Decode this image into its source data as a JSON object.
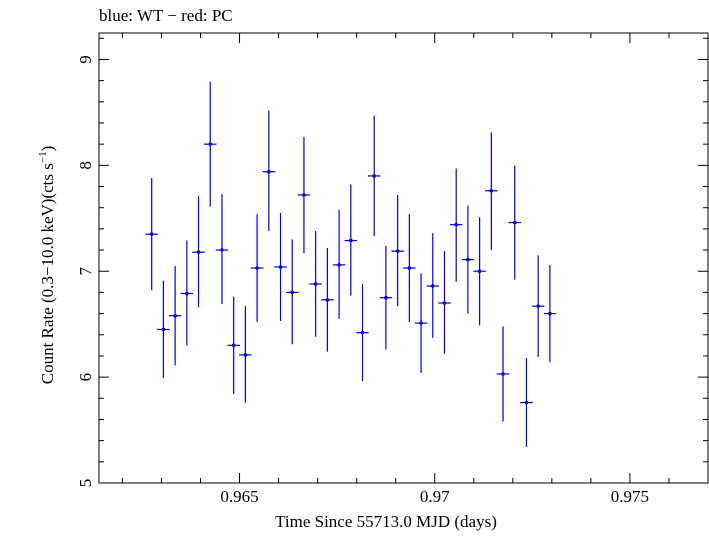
{
  "chart_data": {
    "type": "scatter",
    "title": "blue: WT − red: PC",
    "xlabel": "Time Since 55713.0 MJD (days)",
    "ylabel_main": "Count Rate (0.3−10.0 keV)(cts s",
    "ylabel_sup": "−1",
    "ylabel_close": ")",
    "xlim": [
      0.9614,
      0.977
    ],
    "ylim": [
      5,
      9.25
    ],
    "xticks": [
      {
        "value": 0.965,
        "label": "0.965"
      },
      {
        "value": 0.97,
        "label": "0.97"
      },
      {
        "value": 0.975,
        "label": "0.975"
      }
    ],
    "yticks": [
      {
        "value": 5,
        "label": "5"
      },
      {
        "value": 6,
        "label": "6"
      },
      {
        "value": 7,
        "label": "7"
      },
      {
        "value": 8,
        "label": "8"
      },
      {
        "value": 9,
        "label": "9"
      }
    ],
    "grid": false,
    "colors": {
      "wt": "#0000dd",
      "axis": "#000000"
    },
    "series": [
      {
        "name": "WT",
        "color": "#0000dd",
        "points": [
          {
            "x": 0.96275,
            "xerr": 0.00016,
            "y": 7.35,
            "ylo": 6.82,
            "yhi": 7.88
          },
          {
            "x": 0.96305,
            "xerr": 0.00016,
            "y": 6.45,
            "ylo": 5.99,
            "yhi": 6.91
          },
          {
            "x": 0.96335,
            "xerr": 0.00016,
            "y": 6.58,
            "ylo": 6.11,
            "yhi": 7.05
          },
          {
            "x": 0.96365,
            "xerr": 0.00016,
            "y": 6.79,
            "ylo": 6.3,
            "yhi": 7.29
          },
          {
            "x": 0.96395,
            "xerr": 0.00016,
            "y": 7.18,
            "ylo": 6.66,
            "yhi": 7.71
          },
          {
            "x": 0.96425,
            "xerr": 0.00016,
            "y": 8.2,
            "ylo": 7.61,
            "yhi": 8.79
          },
          {
            "x": 0.96455,
            "xerr": 0.00016,
            "y": 7.2,
            "ylo": 6.69,
            "yhi": 7.73
          },
          {
            "x": 0.96485,
            "xerr": 0.00016,
            "y": 6.3,
            "ylo": 5.84,
            "yhi": 6.76
          },
          {
            "x": 0.96515,
            "xerr": 0.00016,
            "y": 6.21,
            "ylo": 5.76,
            "yhi": 6.67
          },
          {
            "x": 0.96545,
            "xerr": 0.00016,
            "y": 7.03,
            "ylo": 6.52,
            "yhi": 7.54
          },
          {
            "x": 0.96575,
            "xerr": 0.00016,
            "y": 7.94,
            "ylo": 7.38,
            "yhi": 8.52
          },
          {
            "x": 0.96605,
            "xerr": 0.00016,
            "y": 7.04,
            "ylo": 6.53,
            "yhi": 7.55
          },
          {
            "x": 0.96635,
            "xerr": 0.00016,
            "y": 6.8,
            "ylo": 6.31,
            "yhi": 7.3
          },
          {
            "x": 0.96665,
            "xerr": 0.00016,
            "y": 7.72,
            "ylo": 7.17,
            "yhi": 8.27
          },
          {
            "x": 0.96695,
            "xerr": 0.00016,
            "y": 6.88,
            "ylo": 6.38,
            "yhi": 7.38
          },
          {
            "x": 0.96725,
            "xerr": 0.00016,
            "y": 6.73,
            "ylo": 6.24,
            "yhi": 7.22
          },
          {
            "x": 0.96755,
            "xerr": 0.00016,
            "y": 7.06,
            "ylo": 6.55,
            "yhi": 7.58
          },
          {
            "x": 0.96785,
            "xerr": 0.00016,
            "y": 7.29,
            "ylo": 6.77,
            "yhi": 7.82
          },
          {
            "x": 0.96815,
            "xerr": 0.00016,
            "y": 6.42,
            "ylo": 5.96,
            "yhi": 6.88
          },
          {
            "x": 0.96845,
            "xerr": 0.00016,
            "y": 7.9,
            "ylo": 7.33,
            "yhi": 8.47
          },
          {
            "x": 0.96875,
            "xerr": 0.00016,
            "y": 6.75,
            "ylo": 6.26,
            "yhi": 7.24
          },
          {
            "x": 0.96905,
            "xerr": 0.00016,
            "y": 7.19,
            "ylo": 6.67,
            "yhi": 7.72
          },
          {
            "x": 0.96935,
            "xerr": 0.00016,
            "y": 7.03,
            "ylo": 6.52,
            "yhi": 7.54
          },
          {
            "x": 0.96965,
            "xerr": 0.00016,
            "y": 6.51,
            "ylo": 6.04,
            "yhi": 6.98
          },
          {
            "x": 0.96995,
            "xerr": 0.00016,
            "y": 6.86,
            "ylo": 6.37,
            "yhi": 7.36
          },
          {
            "x": 0.97025,
            "xerr": 0.00016,
            "y": 6.7,
            "ylo": 6.22,
            "yhi": 7.19
          },
          {
            "x": 0.97055,
            "xerr": 0.00016,
            "y": 7.44,
            "ylo": 6.9,
            "yhi": 7.97
          },
          {
            "x": 0.97085,
            "xerr": 0.00016,
            "y": 7.11,
            "ylo": 6.6,
            "yhi": 7.62
          },
          {
            "x": 0.97115,
            "xerr": 0.00016,
            "y": 7.0,
            "ylo": 6.49,
            "yhi": 7.51
          },
          {
            "x": 0.97145,
            "xerr": 0.00016,
            "y": 7.76,
            "ylo": 7.2,
            "yhi": 8.31
          },
          {
            "x": 0.97175,
            "xerr": 0.00016,
            "y": 6.03,
            "ylo": 5.58,
            "yhi": 6.48
          },
          {
            "x": 0.97205,
            "xerr": 0.00016,
            "y": 7.46,
            "ylo": 6.92,
            "yhi": 8.0
          },
          {
            "x": 0.97235,
            "xerr": 0.00016,
            "y": 5.76,
            "ylo": 5.34,
            "yhi": 6.18
          },
          {
            "x": 0.97265,
            "xerr": 0.00016,
            "y": 6.67,
            "ylo": 6.19,
            "yhi": 7.15
          },
          {
            "x": 0.97295,
            "xerr": 0.00016,
            "y": 6.6,
            "ylo": 6.14,
            "yhi": 7.06
          }
        ]
      }
    ]
  }
}
